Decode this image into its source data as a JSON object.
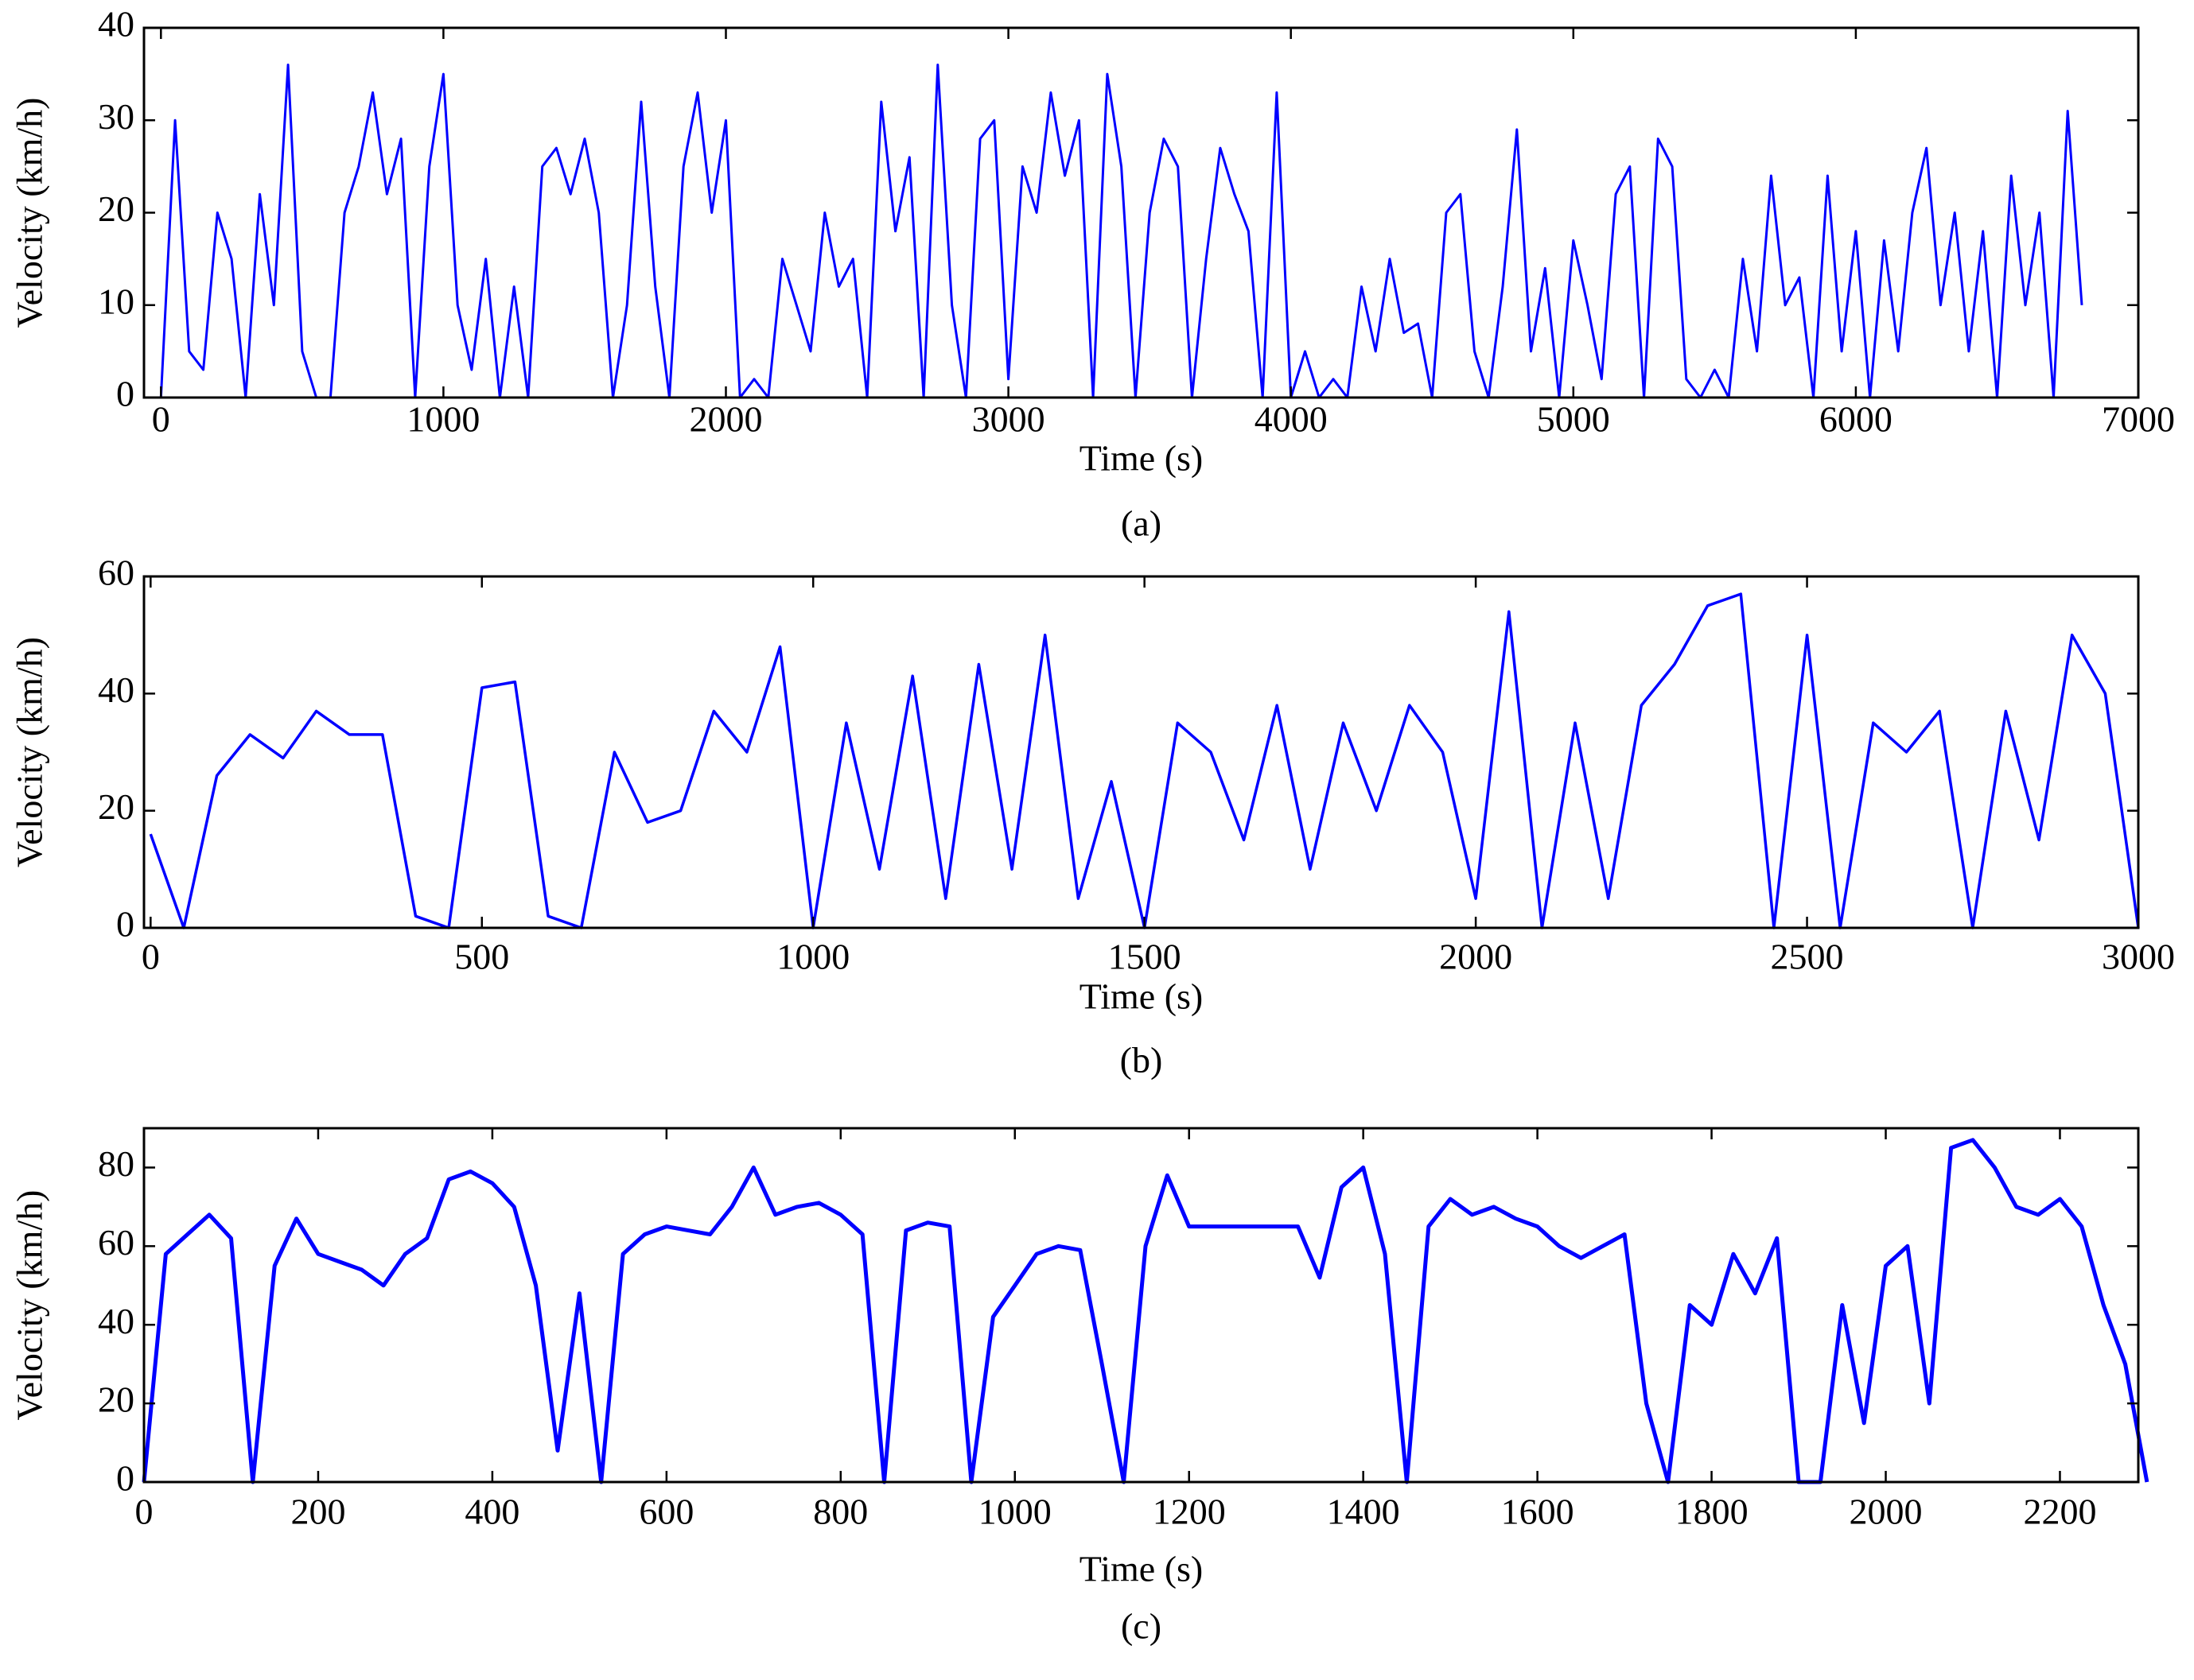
{
  "chart_data": [
    {
      "type": "line",
      "xlabel": "Time (s)",
      "ylabel": "Velocity (km/h)",
      "caption": "(a)",
      "x": [
        0,
        50,
        100,
        150,
        200,
        250,
        300,
        350,
        400,
        450,
        500,
        550,
        600,
        650,
        700,
        750,
        800,
        850,
        900,
        950,
        1000,
        1050,
        1100,
        1150,
        1200,
        1250,
        1300,
        1350,
        1400,
        1450,
        1500,
        1550,
        1600,
        1650,
        1700,
        1750,
        1800,
        1850,
        1900,
        1950,
        2000,
        2050,
        2100,
        2150,
        2200,
        2250,
        2300,
        2350,
        2400,
        2450,
        2500,
        2550,
        2600,
        2650,
        2700,
        2750,
        2800,
        2850,
        2900,
        2950,
        3000,
        3050,
        3100,
        3150,
        3200,
        3250,
        3300,
        3350,
        3400,
        3450,
        3500,
        3550,
        3600,
        3650,
        3700,
        3750,
        3800,
        3850,
        3900,
        3950,
        4000,
        4050,
        4100,
        4150,
        4200,
        4250,
        4300,
        4350,
        4400,
        4450,
        4500,
        4550,
        4600,
        4650,
        4700,
        4750,
        4800,
        4850,
        4900,
        4950,
        5000,
        5050,
        5100,
        5150,
        5200,
        5250,
        5300,
        5350,
        5400,
        5450,
        5500,
        5550,
        5600,
        5650,
        5700,
        5750,
        5800,
        5850,
        5900,
        5950,
        6000,
        6050,
        6100,
        6150,
        6200,
        6250,
        6300,
        6350,
        6400,
        6450,
        6500,
        6550,
        6600,
        6650,
        6700,
        6750,
        6800
      ],
      "series": [
        {
          "color": "#0000ff",
          "values": [
            0,
            30,
            5,
            3,
            20,
            15,
            0,
            22,
            10,
            36,
            5,
            0,
            0,
            20,
            25,
            33,
            22,
            28,
            0,
            25,
            35,
            10,
            3,
            15,
            0,
            12,
            0,
            25,
            27,
            22,
            28,
            20,
            0,
            10,
            32,
            12,
            0,
            25,
            33,
            20,
            30,
            0,
            2,
            0,
            15,
            10,
            5,
            20,
            12,
            15,
            0,
            32,
            18,
            26,
            0,
            36,
            10,
            0,
            28,
            30,
            2,
            25,
            20,
            33,
            24,
            30,
            0,
            35,
            25,
            0,
            20,
            28,
            25,
            0,
            15,
            27,
            22,
            18,
            0,
            33,
            0,
            5,
            0,
            2,
            0,
            12,
            5,
            15,
            7,
            8,
            0,
            20,
            22,
            5,
            0,
            12,
            29,
            5,
            14,
            0,
            17,
            10,
            2,
            22,
            25,
            0,
            28,
            25,
            2,
            0,
            3,
            0,
            15,
            5,
            24,
            10,
            13,
            0,
            24,
            5,
            18,
            0,
            17,
            5,
            20,
            27,
            10,
            20,
            5,
            18,
            0,
            24,
            10,
            20,
            0,
            31,
            10
          ]
        }
      ],
      "xlim": [
        -60,
        7000
      ],
      "xticks": [
        0,
        1000,
        2000,
        3000,
        4000,
        5000,
        6000,
        7000
      ],
      "ylim": [
        0,
        40
      ],
      "yticks": [
        0,
        10,
        20,
        30,
        40
      ]
    },
    {
      "type": "line",
      "xlabel": "Time (s)",
      "ylabel": "Velocity (km/h)",
      "caption": "(b)",
      "x": [
        0,
        50,
        100,
        150,
        200,
        250,
        300,
        350,
        400,
        450,
        500,
        550,
        600,
        650,
        700,
        750,
        800,
        850,
        900,
        950,
        1000,
        1050,
        1100,
        1150,
        1200,
        1250,
        1300,
        1350,
        1400,
        1450,
        1500,
        1550,
        1600,
        1650,
        1700,
        1750,
        1800,
        1850,
        1900,
        1950,
        2000,
        2050,
        2100,
        2150,
        2200,
        2250,
        2300,
        2350,
        2400,
        2450,
        2500,
        2550,
        2600,
        2650,
        2700,
        2750,
        2800,
        2850,
        2900,
        2950,
        3000
      ],
      "series": [
        {
          "color": "#0000ff",
          "values": [
            16,
            0,
            26,
            33,
            29,
            37,
            33,
            33,
            2,
            0,
            41,
            42,
            2,
            0,
            30,
            18,
            20,
            37,
            30,
            48,
            0,
            35,
            10,
            43,
            5,
            45,
            10,
            50,
            5,
            25,
            0,
            35,
            30,
            15,
            38,
            10,
            35,
            20,
            38,
            30,
            5,
            54,
            0,
            35,
            5,
            38,
            45,
            55,
            57,
            0,
            50,
            0,
            35,
            30,
            37,
            0,
            37,
            15,
            50,
            40,
            0
          ]
        }
      ],
      "xlim": [
        -10,
        3000
      ],
      "xticks": [
        0,
        500,
        1000,
        1500,
        2000,
        2500,
        3000
      ],
      "ylim": [
        0,
        60
      ],
      "yticks": [
        0,
        20,
        40,
        60
      ]
    },
    {
      "type": "line",
      "xlabel": "Time (s)",
      "ylabel": "Velocity (km/h)",
      "caption": "(c)",
      "x": [
        0,
        25,
        50,
        75,
        100,
        125,
        150,
        175,
        200,
        225,
        250,
        275,
        300,
        325,
        350,
        375,
        400,
        425,
        450,
        475,
        500,
        525,
        550,
        575,
        600,
        625,
        650,
        675,
        700,
        725,
        750,
        775,
        800,
        825,
        850,
        875,
        900,
        925,
        950,
        975,
        1000,
        1025,
        1050,
        1075,
        1100,
        1125,
        1150,
        1175,
        1200,
        1225,
        1250,
        1275,
        1300,
        1325,
        1350,
        1375,
        1400,
        1425,
        1450,
        1475,
        1500,
        1525,
        1550,
        1575,
        1600,
        1625,
        1650,
        1675,
        1700,
        1725,
        1750,
        1775,
        1800,
        1825,
        1850,
        1875,
        1900,
        1925,
        1950,
        1975,
        2000,
        2025,
        2050,
        2075,
        2100,
        2125,
        2150,
        2175,
        2200,
        2225,
        2250,
        2275,
        2300
      ],
      "series": [
        {
          "color": "#0000ff",
          "values": [
            0,
            58,
            63,
            68,
            62,
            0,
            55,
            67,
            58,
            56,
            54,
            50,
            58,
            62,
            77,
            79,
            76,
            70,
            50,
            8,
            48,
            0,
            58,
            63,
            65,
            64,
            63,
            70,
            80,
            68,
            70,
            71,
            68,
            63,
            0,
            64,
            66,
            65,
            0,
            42,
            50,
            58,
            60,
            59,
            30,
            0,
            60,
            78,
            65,
            65,
            65,
            65,
            65,
            65,
            52,
            75,
            80,
            58,
            0,
            65,
            72,
            68,
            70,
            67,
            65,
            60,
            57,
            60,
            63,
            20,
            0,
            45,
            40,
            58,
            48,
            62,
            0,
            0,
            45,
            15,
            55,
            60,
            20,
            85,
            87,
            80,
            70,
            68,
            72,
            65,
            45,
            30,
            0
          ]
        }
      ],
      "xlim": [
        0,
        2290
      ],
      "xticks": [
        0,
        200,
        400,
        600,
        800,
        1000,
        1200,
        1400,
        1600,
        1800,
        2000,
        2200
      ],
      "ylim": [
        0,
        90
      ],
      "yticks": [
        0,
        20,
        40,
        60,
        80
      ]
    }
  ]
}
